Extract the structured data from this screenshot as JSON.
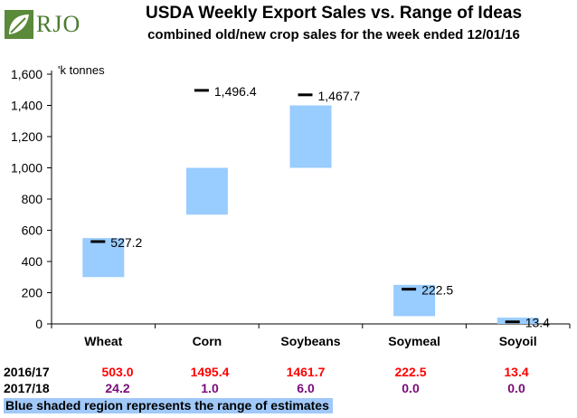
{
  "header": {
    "logo_text": "RJO",
    "title": "USDA Weekly Export Sales vs. Range of Ideas",
    "subtitle": "combined old/new crop sales for the week ended 12/01/16"
  },
  "colors": {
    "range_fill": "#99ccff",
    "row1_text": "#ff0000",
    "row2_text": "#7a0a7a",
    "logo_green": "#4a7a2e",
    "note_fill": "#a0c8f8"
  },
  "chart_data": {
    "type": "bar",
    "unit_label": "'k tonnes",
    "ylim": [
      0,
      1600
    ],
    "yticks": [
      "0",
      "200",
      "400",
      "600",
      "800",
      "1,000",
      "1,200",
      "1,400",
      "1,600"
    ],
    "ytick_values": [
      0,
      200,
      400,
      600,
      800,
      1000,
      1200,
      1400,
      1600
    ],
    "categories": [
      "Wheat",
      "Corn",
      "Soybeans",
      "Soymeal",
      "Soyoil"
    ],
    "range_low": [
      300,
      700,
      1000,
      50,
      0
    ],
    "range_high": [
      550,
      1000,
      1400,
      250,
      40
    ],
    "actual": [
      527.2,
      1496.4,
      1467.7,
      222.5,
      13.4
    ],
    "actual_labels": [
      "527.2",
      "1,496.4",
      "1,467.7",
      "222.5",
      "13.4"
    ]
  },
  "table": {
    "rows": [
      {
        "label": "2016/17",
        "values": [
          "503.0",
          "1495.4",
          "1461.7",
          "222.5",
          "13.4"
        ]
      },
      {
        "label": "2017/18",
        "values": [
          "24.2",
          "1.0",
          "6.0",
          "0.0",
          "0.0"
        ]
      }
    ]
  },
  "note": "Blue shaded region represents the range of estimates"
}
